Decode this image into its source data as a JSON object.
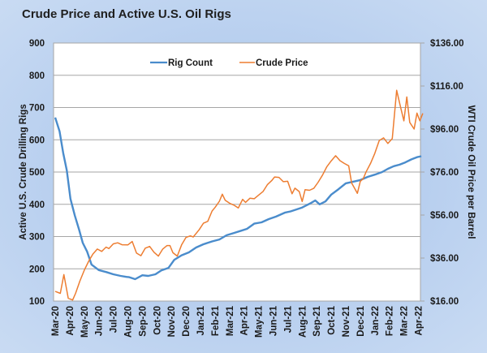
{
  "chart_data": {
    "type": "line",
    "title": "Crude Price and Active U.S. Oil Rigs",
    "xlabel": "",
    "ylabel_left": "Active U.S. Crude Drilling Rigs",
    "ylabel_right": "WTI Crude Oil Price per Barrel",
    "ylim_left": [
      100,
      900
    ],
    "ylim_right": [
      16,
      136
    ],
    "yticks_left": [
      "900",
      "800",
      "700",
      "600",
      "500",
      "400",
      "300",
      "200",
      "100"
    ],
    "yticks_right": [
      "$136.00",
      "$116.00",
      "$96.00",
      "$76.00",
      "$56.00",
      "$36.00",
      "$16.00"
    ],
    "x_tick_labels": [
      "Mar-20",
      "Apr-20",
      "May-20",
      "Jun-20",
      "Jul-20",
      "Aug-20",
      "Sep-20",
      "Oct-20",
      "Nov-20",
      "Dec-20",
      "Jan-21",
      "Feb-21",
      "Mar-21",
      "Apr-21",
      "May-21",
      "Jun-21",
      "Jul-21",
      "Aug-21",
      "Sep-21",
      "Oct-21",
      "Nov-21",
      "Dec-21",
      "Jan-22",
      "Feb-22",
      "Mar-22",
      "Apr-22"
    ],
    "grid": true,
    "legend": {
      "placement": "top-center",
      "entries": [
        "Rig Count",
        "Crude Price"
      ]
    },
    "series": [
      {
        "name": "Rig Count",
        "axis": "left",
        "color": "#4a8ccc",
        "x_months": [
          0,
          0.3,
          0.55,
          0.8,
          1.05,
          1.35,
          1.65,
          1.9,
          2.2,
          2.5,
          3.0,
          3.5,
          4.0,
          4.5,
          4.9,
          5.1,
          5.5,
          6.0,
          6.4,
          6.9,
          7.3,
          7.8,
          8.2,
          8.7,
          9.2,
          9.7,
          10.2,
          10.8,
          11.3,
          11.8,
          12.3,
          12.8,
          13.2,
          13.7,
          14.2,
          14.7,
          15.2,
          15.8,
          16.2,
          16.6,
          17.0,
          17.3,
          17.6,
          17.9,
          18.2,
          18.6,
          19.0,
          19.5,
          20.0,
          20.5,
          21.0,
          21.5,
          22.0,
          22.5,
          22.9,
          23.3,
          23.7,
          24.1,
          24.5,
          24.9,
          25.2
        ],
        "values": [
          669,
          626,
          560,
          505,
          417,
          365,
          321,
          280,
          253,
          213,
          196,
          190,
          183,
          178,
          175,
          174,
          168,
          180,
          178,
          183,
          195,
          203,
          228,
          242,
          251,
          266,
          276,
          285,
          291,
          304,
          311,
          318,
          324,
          340,
          344,
          354,
          362,
          374,
          378,
          384,
          390,
          397,
          404,
          412,
          400,
          409,
          430,
          447,
          465,
          470,
          475,
          485,
          492,
          500,
          510,
          518,
          523,
          530,
          539,
          546,
          549
        ]
      },
      {
        "name": "Crude Price",
        "axis": "right",
        "color": "#ed7d31",
        "x_months": [
          0,
          0.35,
          0.6,
          0.9,
          1.2,
          1.4,
          1.7,
          2.0,
          2.3,
          2.6,
          2.9,
          3.2,
          3.5,
          3.7,
          4.0,
          4.3,
          4.6,
          5.0,
          5.3,
          5.6,
          5.9,
          6.2,
          6.5,
          6.8,
          7.1,
          7.4,
          7.7,
          7.9,
          8.1,
          8.4,
          8.7,
          9.0,
          9.3,
          9.5,
          9.9,
          10.2,
          10.5,
          10.8,
          11.0,
          11.3,
          11.5,
          11.7,
          12.0,
          12.3,
          12.6,
          12.9,
          13.1,
          13.4,
          13.7,
          14.0,
          14.3,
          14.6,
          14.9,
          15.1,
          15.4,
          15.7,
          16.0,
          16.3,
          16.5,
          16.8,
          17.0,
          17.2,
          17.5,
          17.8,
          18.1,
          18.4,
          18.7,
          19.0,
          19.3,
          19.6,
          19.9,
          20.2,
          20.4,
          20.6,
          20.8,
          21.0,
          21.2,
          21.4,
          21.7,
          22.0,
          22.3,
          22.6,
          22.9,
          23.2,
          23.5,
          23.8,
          24.0,
          24.2,
          24.4,
          24.7,
          24.9,
          25.1,
          25.3
        ],
        "values": [
          20.5,
          19.6,
          28.3,
          17.3,
          16.5,
          19.6,
          25.3,
          30.3,
          34.5,
          37.9,
          40.2,
          39.1,
          41.1,
          40.4,
          42.6,
          43.1,
          42.2,
          42.1,
          43.7,
          38.3,
          37.1,
          40.6,
          41.4,
          38.7,
          36.9,
          40.2,
          41.8,
          41.8,
          38.5,
          36.9,
          42.1,
          45.6,
          46.3,
          45.8,
          49.1,
          52.2,
          53.1,
          57.9,
          59.5,
          62.4,
          65.7,
          62.9,
          61.5,
          60.6,
          59.3,
          63.3,
          61.9,
          63.8,
          63.6,
          65.3,
          66.9,
          70.1,
          72.0,
          73.7,
          73.5,
          71.5,
          71.7,
          65.9,
          68.5,
          66.9,
          62.3,
          67.8,
          67.5,
          68.4,
          71.3,
          74.6,
          78.5,
          81.2,
          83.6,
          81.3,
          80.0,
          78.9,
          70.9,
          68.5,
          66.1,
          71.7,
          72.9,
          76.1,
          80.0,
          84.7,
          90.6,
          91.9,
          89.3,
          91.6,
          114.0,
          105.4,
          99.8,
          110.9,
          99.1,
          96.0,
          103.4,
          99.8,
          103.3
        ]
      }
    ]
  }
}
